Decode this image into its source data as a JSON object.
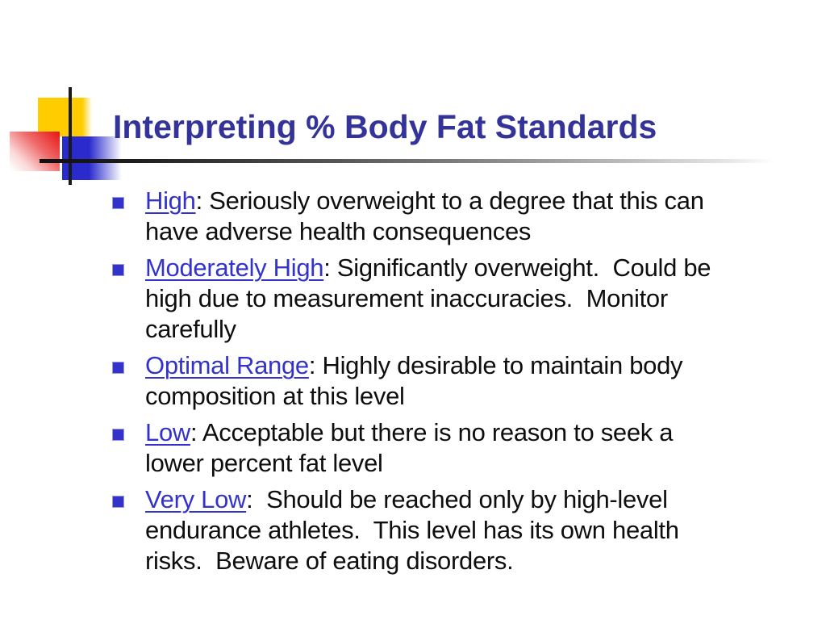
{
  "slide": {
    "title": "Interpreting % Body Fat Standards",
    "bullets": [
      {
        "term": "High",
        "rest": ": Seriously overweight to a degree that this can\nhave adverse health consequences"
      },
      {
        "term": "Moderately High",
        "rest": ": Significantly overweight.  Could be\nhigh due to measurement inaccuracies.  Monitor\ncarefully"
      },
      {
        "term": "Optimal Range",
        "rest": ": Highly desirable to maintain body\ncomposition at this level"
      },
      {
        "term": "Low",
        "rest": ": Acceptable but there is no reason to seek a\nlower percent fat level"
      },
      {
        "term": "Very Low",
        "rest": ":  Should be reached only by high-level\nendurance athletes.  This level has its own health\nrisks.  Beware of eating disorders."
      }
    ],
    "colors": {
      "title_text": "#333399",
      "term_link": "#3333CC",
      "body_text": "#0E0E0E",
      "bullet_marker": "#3333CC",
      "accent_yellow": "#FFCC00",
      "accent_red": "#E81414",
      "accent_blue": "#2A2ACD",
      "cross_lines": "#1A1A1A"
    }
  }
}
